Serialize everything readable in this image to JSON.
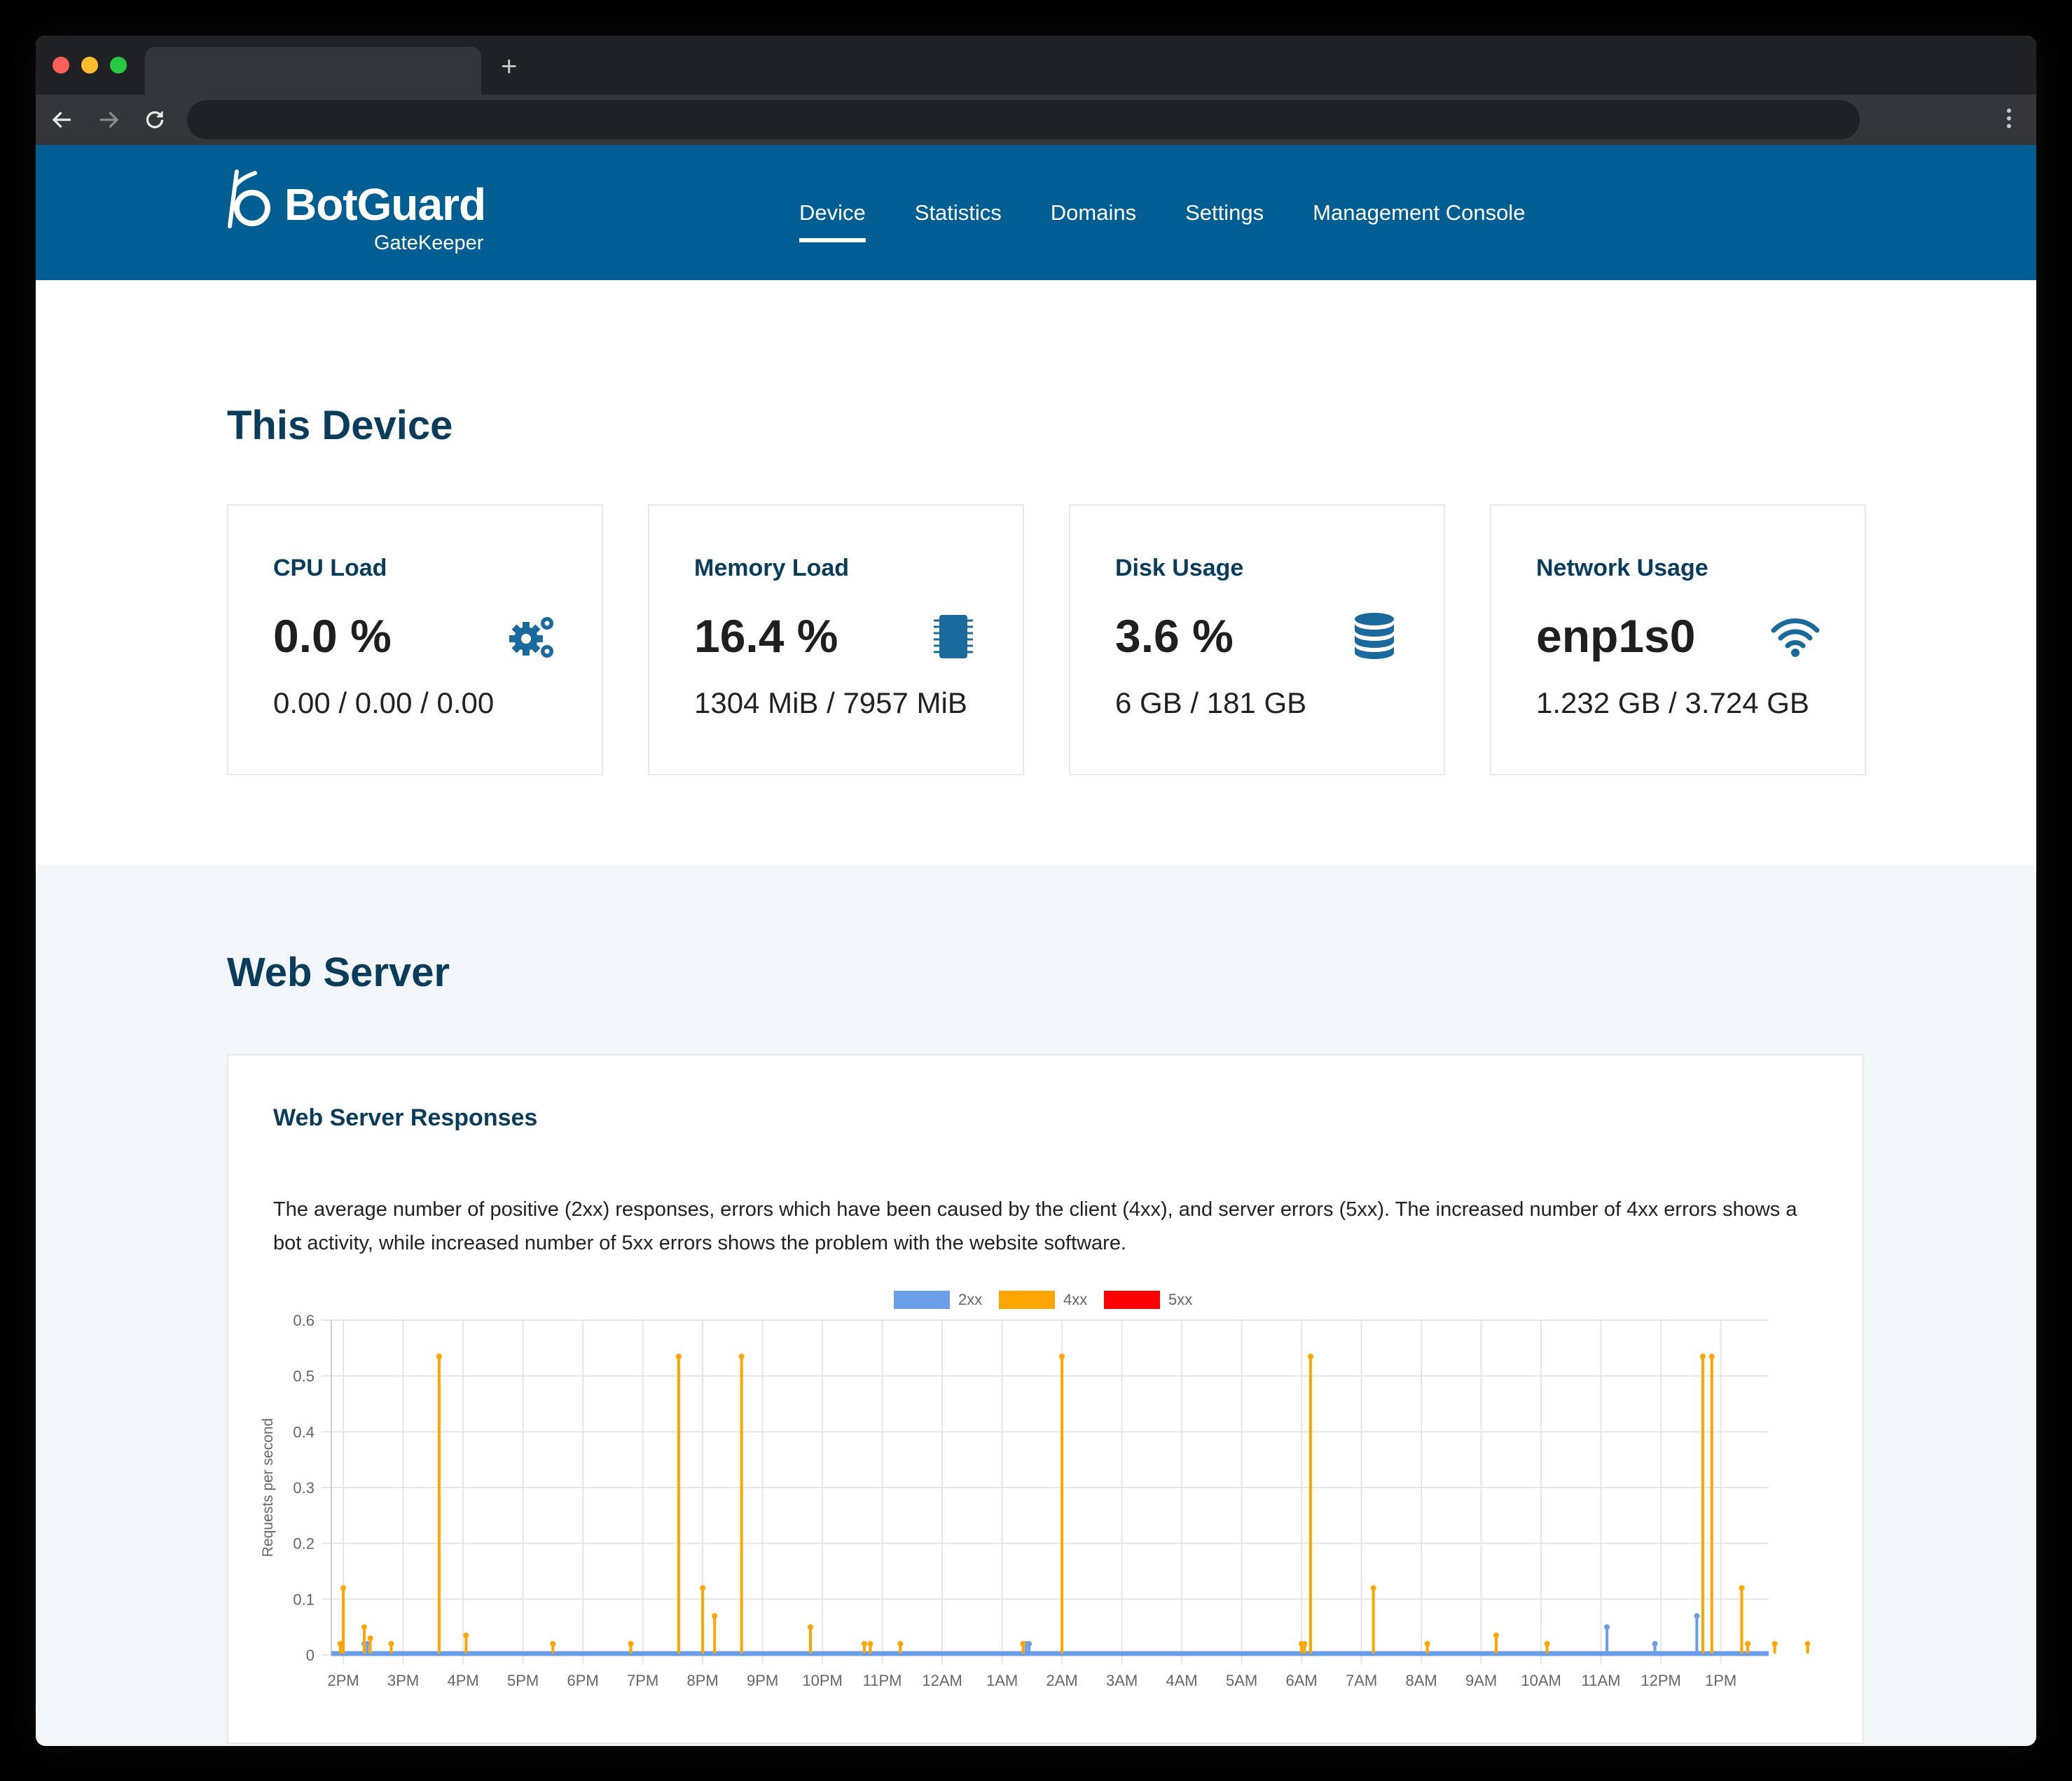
{
  "browser": {
    "new_tab_glyph": "+"
  },
  "brand": {
    "name": "BotGuard",
    "product": "GateKeeper",
    "color": "#005e93"
  },
  "nav": [
    {
      "label": "Device",
      "active": true
    },
    {
      "label": "Statistics",
      "active": false
    },
    {
      "label": "Domains",
      "active": false
    },
    {
      "label": "Settings",
      "active": false
    },
    {
      "label": "Management Console",
      "active": false
    }
  ],
  "device": {
    "heading": "This Device",
    "cards": [
      {
        "title": "CPU Load",
        "value": "0.0 %",
        "sub": "0.00 / 0.00 / 0.00",
        "icon": "gears-icon"
      },
      {
        "title": "Memory Load",
        "value": "16.4 %",
        "sub": "1304 MiB / 7957 MiB",
        "icon": "memory-chip-icon"
      },
      {
        "title": "Disk Usage",
        "value": "3.6 %",
        "sub": "6 GB / 181 GB",
        "icon": "database-icon"
      },
      {
        "title": "Network Usage",
        "value": "enp1s0",
        "sub": "1.232 GB / 3.724 GB",
        "icon": "wifi-icon"
      }
    ]
  },
  "webserver": {
    "heading": "Web Server",
    "chart_title": "Web Server Responses",
    "description": "The average number of positive (2xx) responses, errors which have been caused by the client (4xx), and server errors (5xx). The increased number of 4xx errors shows a bot activity, while increased number of 5xx errors shows the problem with the website software."
  },
  "chart_data": {
    "type": "line",
    "ylabel": "Requests per second",
    "ylim": [
      0,
      0.6
    ],
    "yticks": [
      "0",
      "0.1",
      "0.2",
      "0.3",
      "0.4",
      "0.5",
      "0.6"
    ],
    "x_tick_labels": [
      "2PM",
      "3PM",
      "4PM",
      "5PM",
      "6PM",
      "7PM",
      "8PM",
      "9PM",
      "10PM",
      "11PM",
      "12AM",
      "1AM",
      "2AM",
      "3AM",
      "4AM",
      "5AM",
      "6AM",
      "7AM",
      "8AM",
      "9AM",
      "10AM",
      "11AM",
      "12PM",
      "1PM"
    ],
    "x_hours_range": [
      -0.2,
      23.8
    ],
    "legend": {
      "position": "top",
      "entries": [
        "2xx",
        "4xx",
        "5xx"
      ]
    },
    "colors": {
      "2xx": "#6b9ee8",
      "4xx": "#ffa500",
      "5xx": "#ff0000",
      "grid": "#e6e6e6"
    },
    "series": [
      {
        "name": "2xx",
        "points": [
          [
            0.35,
            0.02
          ],
          [
            0.4,
            0.02
          ],
          [
            11.4,
            0.02
          ],
          [
            11.45,
            0.02
          ],
          [
            21.1,
            0.05
          ],
          [
            21.9,
            0.02
          ],
          [
            22.6,
            0.07
          ]
        ]
      },
      {
        "name": "4xx",
        "points": [
          [
            -0.05,
            0.02
          ],
          [
            0.0,
            0.12
          ],
          [
            0.35,
            0.05
          ],
          [
            0.45,
            0.03
          ],
          [
            0.8,
            0.02
          ],
          [
            1.6,
            0.535
          ],
          [
            2.05,
            0.035
          ],
          [
            3.5,
            0.02
          ],
          [
            4.8,
            0.02
          ],
          [
            5.6,
            0.535
          ],
          [
            6.0,
            0.12
          ],
          [
            6.2,
            0.07
          ],
          [
            6.65,
            0.535
          ],
          [
            7.8,
            0.05
          ],
          [
            8.7,
            0.02
          ],
          [
            8.8,
            0.02
          ],
          [
            9.3,
            0.02
          ],
          [
            11.35,
            0.02
          ],
          [
            12.0,
            0.535
          ],
          [
            16.0,
            0.02
          ],
          [
            16.05,
            0.02
          ],
          [
            16.15,
            0.535
          ],
          [
            17.2,
            0.12
          ],
          [
            18.1,
            0.02
          ],
          [
            19.25,
            0.035
          ],
          [
            20.1,
            0.02
          ],
          [
            22.7,
            0.535
          ],
          [
            22.85,
            0.535
          ],
          [
            23.35,
            0.12
          ],
          [
            23.45,
            0.02
          ],
          [
            23.9,
            0.02
          ],
          [
            24.45,
            0.02
          ]
        ]
      },
      {
        "name": "5xx",
        "points": []
      }
    ]
  }
}
